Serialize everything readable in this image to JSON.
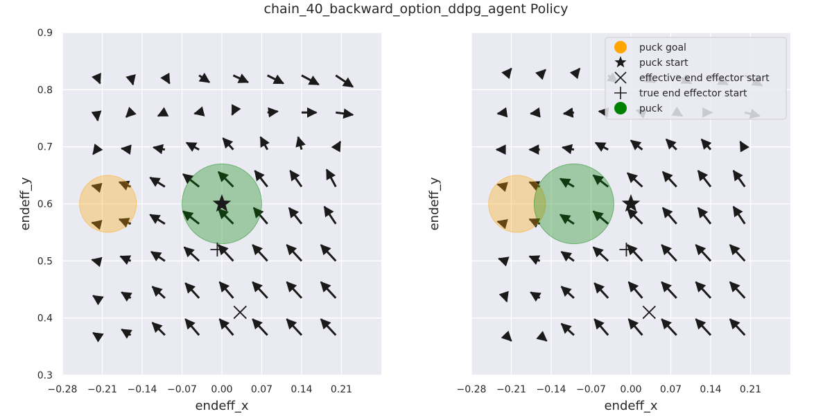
{
  "figure": {
    "title": "chain_40_backward_option_ddpg_agent Policy"
  },
  "colors": {
    "plot_background": "#eaeaf2",
    "grid": "#ffffff",
    "arrow": "#1a1a1a",
    "puck_goal": "#ffa500",
    "puck": "#008000",
    "marker": "#1a1a1a",
    "text": "#262626"
  },
  "legend": {
    "placement": "upper-right",
    "entries": [
      {
        "label": "puck goal",
        "marker": "circle",
        "color": "#ffa500"
      },
      {
        "label": "puck start",
        "marker": "star",
        "color": "#1a1a1a"
      },
      {
        "label": "effective end effector start",
        "marker": "x",
        "color": "#1a1a1a"
      },
      {
        "label": "true end effector start",
        "marker": "plus",
        "color": "#1a1a1a"
      },
      {
        "label": "puck",
        "marker": "circle",
        "color": "#008000"
      }
    ]
  },
  "chart_data": [
    {
      "type": "quiver",
      "xlabel": "endeff_x",
      "ylabel": "endeff_y",
      "xlim": [
        -0.28,
        0.28
      ],
      "ylim": [
        0.3,
        0.9
      ],
      "xticks": [
        "−0.28",
        "−0.21",
        "−0.14",
        "−0.07",
        "0.00",
        "0.07",
        "0.14",
        "0.21"
      ],
      "yticks": [
        "0.3",
        "0.4",
        "0.5",
        "0.6",
        "0.7",
        "0.8",
        "0.9"
      ],
      "grid": true,
      "legend": false,
      "puck_goal": {
        "x": -0.2,
        "y": 0.6,
        "r": 0.05
      },
      "puck": {
        "x": 0.0,
        "y": 0.6,
        "r": 0.07
      },
      "puck_start": {
        "x": 0.0,
        "y": 0.6
      },
      "effective_end_effector_start": {
        "x": 0.032,
        "y": 0.41
      },
      "true_end_effector_start": {
        "x": -0.008,
        "y": 0.52
      },
      "arrows": [
        {
          "x": -0.22,
          "y": 0.825,
          "dx": 0.006,
          "dy": -0.014
        },
        {
          "x": -0.16,
          "y": 0.825,
          "dx": 0.004,
          "dy": -0.016
        },
        {
          "x": -0.1,
          "y": 0.825,
          "dx": 0.008,
          "dy": -0.014
        },
        {
          "x": -0.04,
          "y": 0.825,
          "dx": 0.018,
          "dy": -0.012
        },
        {
          "x": 0.02,
          "y": 0.825,
          "dx": 0.026,
          "dy": -0.012
        },
        {
          "x": 0.08,
          "y": 0.825,
          "dx": 0.028,
          "dy": -0.014
        },
        {
          "x": 0.14,
          "y": 0.825,
          "dx": 0.03,
          "dy": -0.016
        },
        {
          "x": 0.2,
          "y": 0.825,
          "dx": 0.03,
          "dy": -0.02
        },
        {
          "x": -0.22,
          "y": 0.76,
          "dx": 0.002,
          "dy": -0.014
        },
        {
          "x": -0.16,
          "y": 0.76,
          "dx": -0.008,
          "dy": -0.008
        },
        {
          "x": -0.1,
          "y": 0.76,
          "dx": -0.012,
          "dy": -0.006
        },
        {
          "x": -0.04,
          "y": 0.76,
          "dx": -0.008,
          "dy": -0.002
        },
        {
          "x": 0.02,
          "y": 0.76,
          "dx": -0.002,
          "dy": -0.004
        },
        {
          "x": 0.08,
          "y": 0.76,
          "dx": 0.018,
          "dy": 0.002
        },
        {
          "x": 0.14,
          "y": 0.76,
          "dx": 0.026,
          "dy": 0.0
        },
        {
          "x": 0.2,
          "y": 0.76,
          "dx": 0.03,
          "dy": -0.004
        },
        {
          "x": -0.22,
          "y": 0.695,
          "dx": -0.006,
          "dy": -0.008
        },
        {
          "x": -0.16,
          "y": 0.695,
          "dx": -0.016,
          "dy": 0.002
        },
        {
          "x": -0.1,
          "y": 0.695,
          "dx": -0.02,
          "dy": 0.004
        },
        {
          "x": -0.04,
          "y": 0.695,
          "dx": -0.022,
          "dy": 0.012
        },
        {
          "x": 0.02,
          "y": 0.695,
          "dx": -0.018,
          "dy": 0.02
        },
        {
          "x": 0.08,
          "y": 0.695,
          "dx": -0.012,
          "dy": 0.022
        },
        {
          "x": 0.14,
          "y": 0.695,
          "dx": -0.006,
          "dy": 0.022
        },
        {
          "x": 0.2,
          "y": 0.695,
          "dx": 0.008,
          "dy": 0.014
        },
        {
          "x": -0.22,
          "y": 0.63,
          "dx": -0.008,
          "dy": 0.002
        },
        {
          "x": -0.16,
          "y": 0.63,
          "dx": -0.02,
          "dy": 0.008
        },
        {
          "x": -0.1,
          "y": 0.63,
          "dx": -0.026,
          "dy": 0.016
        },
        {
          "x": -0.04,
          "y": 0.63,
          "dx": -0.028,
          "dy": 0.022
        },
        {
          "x": 0.02,
          "y": 0.63,
          "dx": -0.026,
          "dy": 0.026
        },
        {
          "x": 0.08,
          "y": 0.63,
          "dx": -0.022,
          "dy": 0.028
        },
        {
          "x": 0.14,
          "y": 0.63,
          "dx": -0.02,
          "dy": 0.028
        },
        {
          "x": 0.2,
          "y": 0.63,
          "dx": -0.016,
          "dy": 0.03
        },
        {
          "x": -0.22,
          "y": 0.565,
          "dx": -0.008,
          "dy": 0.002
        },
        {
          "x": -0.16,
          "y": 0.565,
          "dx": -0.02,
          "dy": 0.008
        },
        {
          "x": -0.1,
          "y": 0.565,
          "dx": -0.026,
          "dy": 0.016
        },
        {
          "x": -0.04,
          "y": 0.565,
          "dx": -0.028,
          "dy": 0.022
        },
        {
          "x": 0.02,
          "y": 0.565,
          "dx": -0.026,
          "dy": 0.026
        },
        {
          "x": 0.08,
          "y": 0.565,
          "dx": -0.024,
          "dy": 0.028
        },
        {
          "x": 0.14,
          "y": 0.565,
          "dx": -0.022,
          "dy": 0.028
        },
        {
          "x": 0.2,
          "y": 0.565,
          "dx": -0.02,
          "dy": 0.03
        },
        {
          "x": -0.22,
          "y": 0.5,
          "dx": -0.008,
          "dy": 0.002
        },
        {
          "x": -0.16,
          "y": 0.5,
          "dx": -0.018,
          "dy": 0.008
        },
        {
          "x": -0.1,
          "y": 0.5,
          "dx": -0.024,
          "dy": 0.016
        },
        {
          "x": -0.04,
          "y": 0.5,
          "dx": -0.026,
          "dy": 0.024
        },
        {
          "x": 0.02,
          "y": 0.5,
          "dx": -0.026,
          "dy": 0.028
        },
        {
          "x": 0.08,
          "y": 0.5,
          "dx": -0.026,
          "dy": 0.028
        },
        {
          "x": 0.14,
          "y": 0.5,
          "dx": -0.026,
          "dy": 0.028
        },
        {
          "x": 0.2,
          "y": 0.5,
          "dx": -0.026,
          "dy": 0.028
        },
        {
          "x": -0.22,
          "y": 0.435,
          "dx": -0.006,
          "dy": 0.004
        },
        {
          "x": -0.16,
          "y": 0.435,
          "dx": -0.016,
          "dy": 0.01
        },
        {
          "x": -0.1,
          "y": 0.435,
          "dx": -0.022,
          "dy": 0.02
        },
        {
          "x": -0.04,
          "y": 0.435,
          "dx": -0.024,
          "dy": 0.026
        },
        {
          "x": 0.02,
          "y": 0.435,
          "dx": -0.024,
          "dy": 0.028
        },
        {
          "x": 0.08,
          "y": 0.435,
          "dx": -0.026,
          "dy": 0.028
        },
        {
          "x": 0.14,
          "y": 0.435,
          "dx": -0.026,
          "dy": 0.028
        },
        {
          "x": 0.2,
          "y": 0.435,
          "dx": -0.026,
          "dy": 0.028
        },
        {
          "x": -0.22,
          "y": 0.37,
          "dx": -0.006,
          "dy": 0.004
        },
        {
          "x": -0.16,
          "y": 0.37,
          "dx": -0.016,
          "dy": 0.01
        },
        {
          "x": -0.1,
          "y": 0.37,
          "dx": -0.022,
          "dy": 0.022
        },
        {
          "x": -0.04,
          "y": 0.37,
          "dx": -0.024,
          "dy": 0.028
        },
        {
          "x": 0.02,
          "y": 0.37,
          "dx": -0.024,
          "dy": 0.028
        },
        {
          "x": 0.08,
          "y": 0.37,
          "dx": -0.026,
          "dy": 0.028
        },
        {
          "x": 0.14,
          "y": 0.37,
          "dx": -0.026,
          "dy": 0.028
        },
        {
          "x": 0.2,
          "y": 0.37,
          "dx": -0.026,
          "dy": 0.028
        }
      ]
    },
    {
      "type": "quiver",
      "xlabel": "endeff_x",
      "ylabel": "endeff_y",
      "xlim": [
        -0.28,
        0.28
      ],
      "ylim": [
        0.3,
        0.9
      ],
      "xticks": [
        "−0.28",
        "−0.21",
        "−0.14",
        "−0.07",
        "0.00",
        "0.07",
        "0.14",
        "0.21"
      ],
      "yticks": [],
      "grid": true,
      "legend": true,
      "puck_goal": {
        "x": -0.2,
        "y": 0.6,
        "r": 0.05
      },
      "puck": {
        "x": -0.1,
        "y": 0.6,
        "r": 0.07
      },
      "puck_start": {
        "x": 0.0,
        "y": 0.6
      },
      "effective_end_effector_start": {
        "x": 0.032,
        "y": 0.41
      },
      "true_end_effector_start": {
        "x": -0.008,
        "y": 0.52
      },
      "arrows": [
        {
          "x": -0.22,
          "y": 0.825,
          "dx": 0.01,
          "dy": 0.012
        },
        {
          "x": -0.16,
          "y": 0.825,
          "dx": 0.01,
          "dy": 0.01
        },
        {
          "x": -0.1,
          "y": 0.825,
          "dx": 0.01,
          "dy": 0.012
        },
        {
          "x": -0.04,
          "y": 0.825,
          "dx": 0.016,
          "dy": -0.012
        },
        {
          "x": 0.02,
          "y": 0.825,
          "dx": 0.022,
          "dy": -0.012
        },
        {
          "x": 0.08,
          "y": 0.825,
          "dx": 0.026,
          "dy": -0.014
        },
        {
          "x": 0.14,
          "y": 0.825,
          "dx": 0.03,
          "dy": -0.016
        },
        {
          "x": 0.2,
          "y": 0.825,
          "dx": 0.03,
          "dy": -0.018
        },
        {
          "x": -0.22,
          "y": 0.76,
          "dx": -0.014,
          "dy": -0.002
        },
        {
          "x": -0.16,
          "y": 0.76,
          "dx": -0.016,
          "dy": -0.002
        },
        {
          "x": -0.1,
          "y": 0.76,
          "dx": -0.018,
          "dy": -0.002
        },
        {
          "x": -0.04,
          "y": 0.76,
          "dx": -0.016,
          "dy": 0.002
        },
        {
          "x": 0.02,
          "y": 0.76,
          "dx": -0.01,
          "dy": 0.004
        },
        {
          "x": 0.08,
          "y": 0.76,
          "dx": 0.01,
          "dy": -0.006
        },
        {
          "x": 0.14,
          "y": 0.76,
          "dx": 0.002,
          "dy": 0.0
        },
        {
          "x": 0.2,
          "y": 0.76,
          "dx": 0.026,
          "dy": -0.006
        },
        {
          "x": -0.22,
          "y": 0.695,
          "dx": -0.016,
          "dy": 0.0
        },
        {
          "x": -0.16,
          "y": 0.695,
          "dx": -0.018,
          "dy": 0.0
        },
        {
          "x": -0.1,
          "y": 0.695,
          "dx": -0.02,
          "dy": 0.004
        },
        {
          "x": -0.04,
          "y": 0.695,
          "dx": -0.022,
          "dy": 0.012
        },
        {
          "x": 0.02,
          "y": 0.695,
          "dx": -0.02,
          "dy": 0.016
        },
        {
          "x": 0.08,
          "y": 0.695,
          "dx": -0.018,
          "dy": 0.018
        },
        {
          "x": 0.14,
          "y": 0.695,
          "dx": -0.016,
          "dy": 0.018
        },
        {
          "x": 0.2,
          "y": 0.695,
          "dx": -0.008,
          "dy": 0.014
        },
        {
          "x": -0.22,
          "y": 0.63,
          "dx": -0.014,
          "dy": 0.004
        },
        {
          "x": -0.16,
          "y": 0.63,
          "dx": -0.018,
          "dy": 0.008
        },
        {
          "x": -0.1,
          "y": 0.63,
          "dx": -0.024,
          "dy": 0.014
        },
        {
          "x": -0.04,
          "y": 0.63,
          "dx": -0.026,
          "dy": 0.02
        },
        {
          "x": 0.02,
          "y": 0.63,
          "dx": -0.026,
          "dy": 0.024
        },
        {
          "x": 0.08,
          "y": 0.63,
          "dx": -0.024,
          "dy": 0.026
        },
        {
          "x": 0.14,
          "y": 0.63,
          "dx": -0.022,
          "dy": 0.028
        },
        {
          "x": 0.2,
          "y": 0.63,
          "dx": -0.02,
          "dy": 0.028
        },
        {
          "x": -0.22,
          "y": 0.565,
          "dx": -0.014,
          "dy": 0.004
        },
        {
          "x": -0.16,
          "y": 0.565,
          "dx": -0.018,
          "dy": 0.008
        },
        {
          "x": -0.1,
          "y": 0.565,
          "dx": -0.024,
          "dy": 0.016
        },
        {
          "x": -0.04,
          "y": 0.565,
          "dx": -0.026,
          "dy": 0.022
        },
        {
          "x": 0.02,
          "y": 0.565,
          "dx": -0.026,
          "dy": 0.026
        },
        {
          "x": 0.08,
          "y": 0.565,
          "dx": -0.024,
          "dy": 0.028
        },
        {
          "x": 0.14,
          "y": 0.565,
          "dx": -0.022,
          "dy": 0.028
        },
        {
          "x": 0.2,
          "y": 0.565,
          "dx": -0.02,
          "dy": 0.03
        },
        {
          "x": -0.22,
          "y": 0.5,
          "dx": -0.012,
          "dy": 0.004
        },
        {
          "x": -0.16,
          "y": 0.5,
          "dx": -0.018,
          "dy": 0.008
        },
        {
          "x": -0.1,
          "y": 0.5,
          "dx": -0.022,
          "dy": 0.016
        },
        {
          "x": -0.04,
          "y": 0.5,
          "dx": -0.026,
          "dy": 0.024
        },
        {
          "x": 0.02,
          "y": 0.5,
          "dx": -0.026,
          "dy": 0.028
        },
        {
          "x": 0.08,
          "y": 0.5,
          "dx": -0.026,
          "dy": 0.028
        },
        {
          "x": 0.14,
          "y": 0.5,
          "dx": -0.026,
          "dy": 0.028
        },
        {
          "x": 0.2,
          "y": 0.5,
          "dx": -0.026,
          "dy": 0.028
        },
        {
          "x": -0.22,
          "y": 0.435,
          "dx": 0.002,
          "dy": -0.006
        },
        {
          "x": -0.16,
          "y": 0.435,
          "dx": -0.016,
          "dy": 0.01
        },
        {
          "x": -0.1,
          "y": 0.435,
          "dx": -0.022,
          "dy": 0.02
        },
        {
          "x": -0.04,
          "y": 0.435,
          "dx": -0.024,
          "dy": 0.026
        },
        {
          "x": 0.02,
          "y": 0.435,
          "dx": -0.024,
          "dy": 0.028
        },
        {
          "x": 0.08,
          "y": 0.435,
          "dx": -0.026,
          "dy": 0.028
        },
        {
          "x": 0.14,
          "y": 0.435,
          "dx": -0.026,
          "dy": 0.028
        },
        {
          "x": 0.2,
          "y": 0.435,
          "dx": -0.026,
          "dy": 0.028
        },
        {
          "x": -0.22,
          "y": 0.37,
          "dx": 0.01,
          "dy": -0.01
        },
        {
          "x": -0.16,
          "y": 0.37,
          "dx": 0.012,
          "dy": -0.01
        },
        {
          "x": -0.1,
          "y": 0.37,
          "dx": -0.022,
          "dy": 0.02
        },
        {
          "x": -0.04,
          "y": 0.37,
          "dx": -0.024,
          "dy": 0.028
        },
        {
          "x": 0.02,
          "y": 0.37,
          "dx": -0.024,
          "dy": 0.028
        },
        {
          "x": 0.08,
          "y": 0.37,
          "dx": -0.026,
          "dy": 0.028
        },
        {
          "x": 0.14,
          "y": 0.37,
          "dx": -0.026,
          "dy": 0.028
        },
        {
          "x": 0.2,
          "y": 0.37,
          "dx": -0.026,
          "dy": 0.028
        }
      ]
    }
  ]
}
